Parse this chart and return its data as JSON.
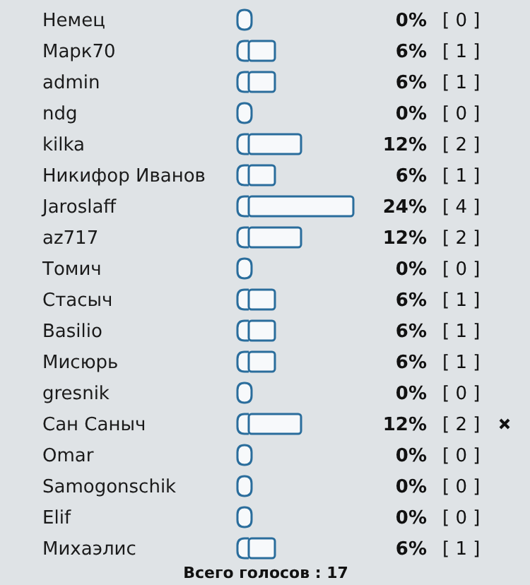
{
  "chart_data": {
    "type": "bar",
    "orientation": "horizontal",
    "categories": [
      "Немец",
      "Марк70",
      "admin",
      "ndg",
      "kilka",
      "Никифор Иванов",
      "Jaroslaff",
      "az717",
      "Томич",
      "Стасыч",
      "Basilio",
      "Мисюрь",
      "gresnik",
      "Сан Саныч",
      "Omar",
      "Samogonschik",
      "Elif",
      "Михаэлис"
    ],
    "values": [
      0,
      6,
      6,
      0,
      12,
      6,
      24,
      12,
      0,
      6,
      6,
      6,
      0,
      12,
      0,
      0,
      0,
      6
    ],
    "value_labels": [
      "0%",
      "6%",
      "6%",
      "0%",
      "12%",
      "6%",
      "24%",
      "12%",
      "0%",
      "6%",
      "6%",
      "6%",
      "0%",
      "12%",
      "0%",
      "0%",
      "0%",
      "6%"
    ],
    "color": "#f7f9fb",
    "annotations": [
      "[ 0 ]",
      "[ 1 ]",
      "[ 1 ]",
      "[ 0 ]",
      "[ 2 ]",
      "[ 1 ]",
      "[ 4 ]",
      "[ 2 ]",
      "[ 0 ]",
      "[ 1 ]",
      "[ 1 ]",
      "[ 1 ]",
      "[ 0 ]",
      "[ 2 ]",
      "[ 0 ]",
      "[ 0 ]",
      "[ 0 ]",
      "[ 1 ]",
      "Всего голосов : 17"
    ]
  }
}
